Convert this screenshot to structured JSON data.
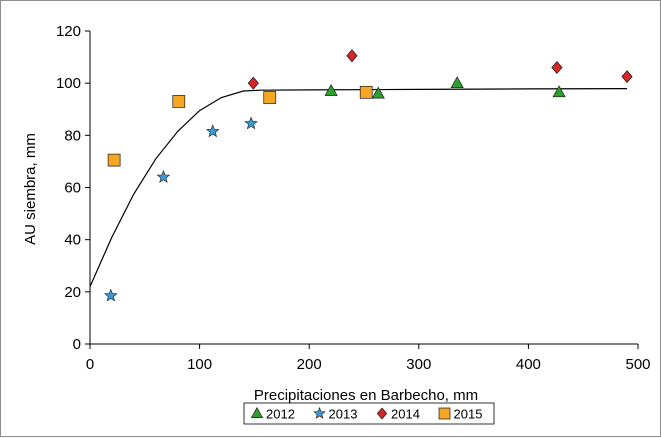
{
  "chart_data": {
    "type": "scatter",
    "title": "",
    "xlabel": "Precipitaciones en Barbecho, mm",
    "ylabel": "AU siembra, mm",
    "xlim": [
      0,
      500
    ],
    "ylim": [
      0,
      120
    ],
    "xticks": [
      0,
      100,
      200,
      300,
      400,
      500
    ],
    "yticks": [
      0,
      20,
      40,
      60,
      80,
      100,
      120
    ],
    "grid": false,
    "legend_position": "bottom",
    "series": [
      {
        "name": "2012",
        "marker": "triangle",
        "color": "#2ca02c",
        "points": [
          [
            220,
            97
          ],
          [
            263,
            96
          ],
          [
            335,
            100
          ],
          [
            428,
            96.5
          ]
        ]
      },
      {
        "name": "2013",
        "marker": "star",
        "color": "#3a9ad9",
        "points": [
          [
            19,
            18.5
          ],
          [
            67,
            64
          ],
          [
            112,
            81.5
          ],
          [
            147,
            84.5
          ]
        ]
      },
      {
        "name": "2014",
        "marker": "diamond",
        "color": "#d62728",
        "points": [
          [
            149,
            100
          ],
          [
            239,
            110.5
          ],
          [
            426,
            106
          ],
          [
            490,
            102.5
          ]
        ]
      },
      {
        "name": "2015",
        "marker": "square",
        "color": "#f5a623",
        "points": [
          [
            22,
            70.5
          ],
          [
            81,
            93
          ],
          [
            164,
            94.5
          ],
          [
            252,
            96.5
          ]
        ]
      }
    ],
    "fit_curve": {
      "type": "line",
      "color": "#000000",
      "points": [
        [
          0,
          22
        ],
        [
          20,
          41
        ],
        [
          40,
          57.5
        ],
        [
          60,
          71
        ],
        [
          80,
          81.5
        ],
        [
          100,
          89.5
        ],
        [
          120,
          94.5
        ],
        [
          140,
          97
        ],
        [
          155,
          97.3
        ],
        [
          200,
          97.4
        ],
        [
          300,
          97.6
        ],
        [
          400,
          97.8
        ],
        [
          490,
          97.9
        ]
      ]
    }
  }
}
